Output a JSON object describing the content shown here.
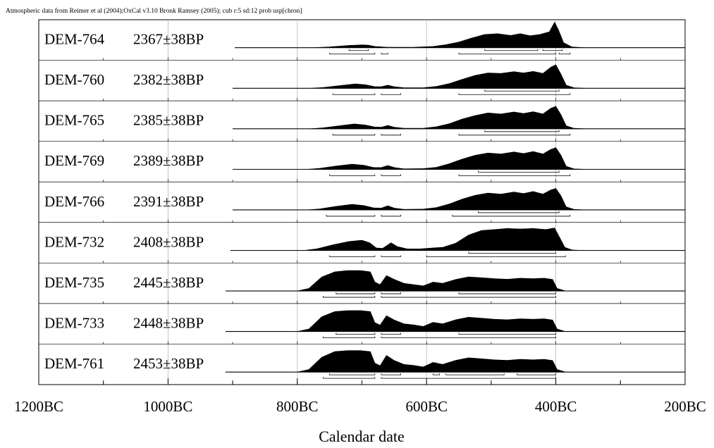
{
  "chart_data": {
    "type": "area",
    "title": "Atmospheric data from Reimer et al (2004);OxCal v3.10 Bronk Ramsey (2005); cub r:5 sd:12 prob usp[chron]",
    "xlabel": "Calendar date",
    "ylabel": "",
    "xlim": [
      -1200,
      -200
    ],
    "x_ticks": [
      {
        "value": -1200,
        "label": "1200BC"
      },
      {
        "value": -1000,
        "label": "1000BC"
      },
      {
        "value": -800,
        "label": "800BC"
      },
      {
        "value": -600,
        "label": "600BC"
      },
      {
        "value": -400,
        "label": "400BC"
      },
      {
        "value": -200,
        "label": "200BC"
      }
    ],
    "grid": true,
    "series": [
      {
        "name": "DEM-764",
        "date": "2367±38BP",
        "density": [
          [
            -775,
            0
          ],
          [
            -750,
            0.03
          ],
          [
            -720,
            0.09
          ],
          [
            -700,
            0.11
          ],
          [
            -690,
            0.1
          ],
          [
            -680,
            0.05
          ],
          [
            -660,
            0.02
          ],
          [
            -620,
            0.02
          ],
          [
            -590,
            0.05
          ],
          [
            -570,
            0.12
          ],
          [
            -550,
            0.22
          ],
          [
            -530,
            0.38
          ],
          [
            -510,
            0.52
          ],
          [
            -490,
            0.55
          ],
          [
            -470,
            0.48
          ],
          [
            -455,
            0.55
          ],
          [
            -440,
            0.47
          ],
          [
            -425,
            0.52
          ],
          [
            -410,
            0.62
          ],
          [
            -402,
            1.0
          ],
          [
            -396,
            0.7
          ],
          [
            -388,
            0.2
          ],
          [
            -375,
            0.03
          ],
          [
            -355,
            0
          ]
        ],
        "ranges_68": [
          [
            -720,
            -690
          ],
          [
            -510,
            -428
          ],
          [
            -420,
            -390
          ]
        ],
        "ranges_95": [
          [
            -750,
            -680
          ],
          [
            -670,
            -660
          ],
          [
            -550,
            -400
          ],
          [
            -395,
            -378
          ]
        ]
      },
      {
        "name": "DEM-760",
        "date": "2382±38BP",
        "density": [
          [
            -780,
            0
          ],
          [
            -760,
            0.03
          ],
          [
            -735,
            0.1
          ],
          [
            -710,
            0.17
          ],
          [
            -695,
            0.14
          ],
          [
            -680,
            0.06
          ],
          [
            -670,
            0.06
          ],
          [
            -660,
            0.12
          ],
          [
            -650,
            0.06
          ],
          [
            -635,
            0.02
          ],
          [
            -605,
            0.02
          ],
          [
            -585,
            0.07
          ],
          [
            -565,
            0.18
          ],
          [
            -545,
            0.35
          ],
          [
            -525,
            0.5
          ],
          [
            -505,
            0.6
          ],
          [
            -485,
            0.58
          ],
          [
            -465,
            0.65
          ],
          [
            -450,
            0.6
          ],
          [
            -435,
            0.66
          ],
          [
            -420,
            0.58
          ],
          [
            -408,
            0.82
          ],
          [
            -400,
            0.92
          ],
          [
            -392,
            0.55
          ],
          [
            -384,
            0.12
          ],
          [
            -372,
            0.02
          ],
          [
            -355,
            0
          ]
        ],
        "ranges_68": [
          [
            -510,
            -395
          ]
        ],
        "ranges_95": [
          [
            -745,
            -680
          ],
          [
            -670,
            -640
          ],
          [
            -550,
            -378
          ]
        ]
      },
      {
        "name": "DEM-765",
        "date": "2385±38BP",
        "density": [
          [
            -780,
            0
          ],
          [
            -760,
            0.04
          ],
          [
            -735,
            0.12
          ],
          [
            -712,
            0.19
          ],
          [
            -695,
            0.15
          ],
          [
            -680,
            0.07
          ],
          [
            -670,
            0.06
          ],
          [
            -660,
            0.13
          ],
          [
            -650,
            0.06
          ],
          [
            -635,
            0.02
          ],
          [
            -605,
            0.02
          ],
          [
            -585,
            0.08
          ],
          [
            -565,
            0.2
          ],
          [
            -545,
            0.38
          ],
          [
            -525,
            0.52
          ],
          [
            -505,
            0.62
          ],
          [
            -485,
            0.58
          ],
          [
            -465,
            0.66
          ],
          [
            -450,
            0.6
          ],
          [
            -435,
            0.67
          ],
          [
            -420,
            0.58
          ],
          [
            -408,
            0.8
          ],
          [
            -400,
            0.88
          ],
          [
            -392,
            0.55
          ],
          [
            -384,
            0.12
          ],
          [
            -372,
            0.02
          ],
          [
            -355,
            0
          ]
        ],
        "ranges_68": [
          [
            -510,
            -395
          ]
        ],
        "ranges_95": [
          [
            -745,
            -680
          ],
          [
            -670,
            -640
          ],
          [
            -550,
            -378
          ]
        ]
      },
      {
        "name": "DEM-769",
        "date": "2389±38BP",
        "density": [
          [
            -785,
            0
          ],
          [
            -765,
            0.04
          ],
          [
            -740,
            0.13
          ],
          [
            -715,
            0.2
          ],
          [
            -697,
            0.16
          ],
          [
            -682,
            0.07
          ],
          [
            -670,
            0.07
          ],
          [
            -660,
            0.15
          ],
          [
            -650,
            0.07
          ],
          [
            -635,
            0.02
          ],
          [
            -605,
            0.03
          ],
          [
            -585,
            0.08
          ],
          [
            -565,
            0.22
          ],
          [
            -545,
            0.4
          ],
          [
            -525,
            0.55
          ],
          [
            -505,
            0.64
          ],
          [
            -485,
            0.6
          ],
          [
            -465,
            0.68
          ],
          [
            -450,
            0.62
          ],
          [
            -435,
            0.7
          ],
          [
            -420,
            0.6
          ],
          [
            -408,
            0.78
          ],
          [
            -400,
            0.85
          ],
          [
            -392,
            0.55
          ],
          [
            -384,
            0.12
          ],
          [
            -372,
            0.02
          ],
          [
            -355,
            0
          ]
        ],
        "ranges_68": [
          [
            -520,
            -395
          ]
        ],
        "ranges_95": [
          [
            -750,
            -680
          ],
          [
            -670,
            -640
          ],
          [
            -550,
            -378
          ]
        ]
      },
      {
        "name": "DEM-766",
        "date": "2391±38BP",
        "density": [
          [
            -785,
            0
          ],
          [
            -765,
            0.04
          ],
          [
            -740,
            0.14
          ],
          [
            -715,
            0.22
          ],
          [
            -697,
            0.17
          ],
          [
            -682,
            0.08
          ],
          [
            -670,
            0.07
          ],
          [
            -660,
            0.16
          ],
          [
            -650,
            0.07
          ],
          [
            -635,
            0.02
          ],
          [
            -605,
            0.03
          ],
          [
            -585,
            0.09
          ],
          [
            -565,
            0.23
          ],
          [
            -545,
            0.42
          ],
          [
            -525,
            0.57
          ],
          [
            -505,
            0.66
          ],
          [
            -485,
            0.62
          ],
          [
            -465,
            0.7
          ],
          [
            -450,
            0.64
          ],
          [
            -435,
            0.72
          ],
          [
            -420,
            0.62
          ],
          [
            -408,
            0.78
          ],
          [
            -400,
            0.84
          ],
          [
            -392,
            0.55
          ],
          [
            -384,
            0.12
          ],
          [
            -372,
            0.02
          ],
          [
            -355,
            0
          ]
        ],
        "ranges_68": [
          [
            -520,
            -395
          ]
        ],
        "ranges_95": [
          [
            -755,
            -680
          ],
          [
            -670,
            -640
          ],
          [
            -560,
            -378
          ]
        ]
      },
      {
        "name": "DEM-732",
        "date": "2408±38BP",
        "density": [
          [
            -790,
            0
          ],
          [
            -770,
            0.06
          ],
          [
            -745,
            0.22
          ],
          [
            -720,
            0.35
          ],
          [
            -700,
            0.4
          ],
          [
            -688,
            0.3
          ],
          [
            -678,
            0.1
          ],
          [
            -668,
            0.08
          ],
          [
            -655,
            0.3
          ],
          [
            -645,
            0.15
          ],
          [
            -630,
            0.06
          ],
          [
            -610,
            0.06
          ],
          [
            -590,
            0.1
          ],
          [
            -575,
            0.12
          ],
          [
            -555,
            0.28
          ],
          [
            -535,
            0.6
          ],
          [
            -515,
            0.78
          ],
          [
            -495,
            0.82
          ],
          [
            -475,
            0.86
          ],
          [
            -455,
            0.84
          ],
          [
            -435,
            0.86
          ],
          [
            -415,
            0.82
          ],
          [
            -402,
            0.88
          ],
          [
            -395,
            0.55
          ],
          [
            -386,
            0.12
          ],
          [
            -375,
            0.02
          ],
          [
            -360,
            0
          ]
        ],
        "ranges_68": [
          [
            -535,
            -400
          ]
        ],
        "ranges_95": [
          [
            -750,
            -680
          ],
          [
            -670,
            -640
          ],
          [
            -600,
            -385
          ]
        ]
      },
      {
        "name": "DEM-735",
        "date": "2445±38BP",
        "density": [
          [
            -800,
            0
          ],
          [
            -782,
            0.1
          ],
          [
            -762,
            0.55
          ],
          [
            -742,
            0.75
          ],
          [
            -722,
            0.8
          ],
          [
            -702,
            0.8
          ],
          [
            -687,
            0.75
          ],
          [
            -680,
            0.35
          ],
          [
            -672,
            0.25
          ],
          [
            -662,
            0.6
          ],
          [
            -650,
            0.45
          ],
          [
            -635,
            0.3
          ],
          [
            -620,
            0.25
          ],
          [
            -605,
            0.2
          ],
          [
            -590,
            0.35
          ],
          [
            -575,
            0.3
          ],
          [
            -555,
            0.45
          ],
          [
            -535,
            0.55
          ],
          [
            -515,
            0.52
          ],
          [
            -495,
            0.48
          ],
          [
            -475,
            0.46
          ],
          [
            -455,
            0.5
          ],
          [
            -435,
            0.48
          ],
          [
            -418,
            0.5
          ],
          [
            -405,
            0.45
          ],
          [
            -398,
            0.1
          ],
          [
            -385,
            0
          ]
        ],
        "ranges_68": [
          [
            -740,
            -680
          ],
          [
            -670,
            -640
          ],
          [
            -550,
            -400
          ]
        ],
        "ranges_95": [
          [
            -760,
            -680
          ],
          [
            -670,
            -400
          ]
        ]
      },
      {
        "name": "DEM-733",
        "date": "2448±38BP",
        "density": [
          [
            -800,
            0
          ],
          [
            -782,
            0.1
          ],
          [
            -762,
            0.58
          ],
          [
            -742,
            0.78
          ],
          [
            -722,
            0.82
          ],
          [
            -702,
            0.82
          ],
          [
            -687,
            0.78
          ],
          [
            -680,
            0.35
          ],
          [
            -672,
            0.25
          ],
          [
            -662,
            0.62
          ],
          [
            -650,
            0.45
          ],
          [
            -635,
            0.3
          ],
          [
            -620,
            0.26
          ],
          [
            -605,
            0.2
          ],
          [
            -590,
            0.36
          ],
          [
            -575,
            0.3
          ],
          [
            -555,
            0.46
          ],
          [
            -535,
            0.56
          ],
          [
            -515,
            0.52
          ],
          [
            -495,
            0.48
          ],
          [
            -475,
            0.46
          ],
          [
            -455,
            0.5
          ],
          [
            -435,
            0.48
          ],
          [
            -418,
            0.5
          ],
          [
            -405,
            0.45
          ],
          [
            -398,
            0.1
          ],
          [
            -385,
            0
          ]
        ],
        "ranges_68": [
          [
            -740,
            -680
          ],
          [
            -670,
            -640
          ],
          [
            -550,
            -400
          ]
        ],
        "ranges_95": [
          [
            -760,
            -680
          ],
          [
            -670,
            -400
          ]
        ]
      },
      {
        "name": "DEM-761",
        "date": "2453±38BP",
        "density": [
          [
            -800,
            0
          ],
          [
            -782,
            0.1
          ],
          [
            -762,
            0.58
          ],
          [
            -742,
            0.8
          ],
          [
            -722,
            0.84
          ],
          [
            -702,
            0.84
          ],
          [
            -687,
            0.8
          ],
          [
            -680,
            0.35
          ],
          [
            -672,
            0.25
          ],
          [
            -662,
            0.65
          ],
          [
            -650,
            0.45
          ],
          [
            -635,
            0.3
          ],
          [
            -620,
            0.26
          ],
          [
            -605,
            0.2
          ],
          [
            -590,
            0.38
          ],
          [
            -575,
            0.3
          ],
          [
            -555,
            0.46
          ],
          [
            -535,
            0.56
          ],
          [
            -515,
            0.52
          ],
          [
            -495,
            0.48
          ],
          [
            -475,
            0.46
          ],
          [
            -455,
            0.5
          ],
          [
            -435,
            0.48
          ],
          [
            -418,
            0.5
          ],
          [
            -405,
            0.45
          ],
          [
            -398,
            0.1
          ],
          [
            -385,
            0
          ]
        ],
        "ranges_68": [
          [
            -750,
            -680
          ],
          [
            -670,
            -640
          ],
          [
            -590,
            -580
          ],
          [
            -570,
            -480
          ],
          [
            -460,
            -400
          ]
        ],
        "ranges_95": [
          [
            -760,
            -680
          ],
          [
            -670,
            -400
          ]
        ]
      }
    ]
  }
}
